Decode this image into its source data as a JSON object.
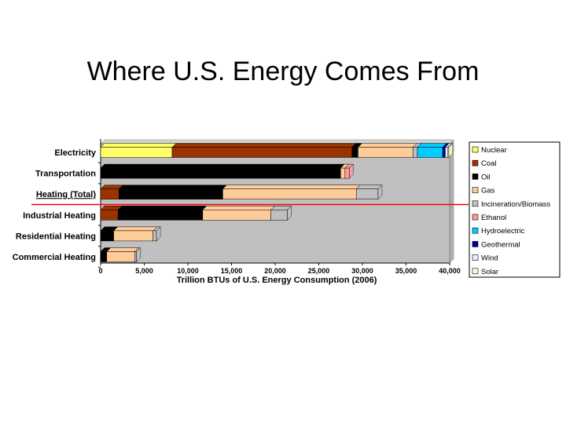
{
  "slide": {
    "title": "Where U.S. Energy Comes From"
  },
  "chart_data": {
    "type": "bar",
    "orientation": "horizontal",
    "stacked": true,
    "title": "",
    "xlabel": "Trillion BTUs of U.S. Energy Consumption (2006)",
    "ylabel": "",
    "xlim": [
      0,
      40000
    ],
    "xticks": [
      0,
      5000,
      10000,
      15000,
      20000,
      25000,
      30000,
      35000,
      40000
    ],
    "xtick_labels": [
      "0",
      "5,000",
      "10,000",
      "15,000",
      "20,000",
      "25,000",
      "30,000",
      "35,000",
      "40,000"
    ],
    "grid": false,
    "legend_position": "right",
    "categories": [
      "Electricity",
      "Transportation",
      "Heating (Total)",
      "Industrial Heating",
      "Residential Heating",
      "Commercial Heating"
    ],
    "underlined_category": "Heating (Total)",
    "series": [
      {
        "name": "Nuclear",
        "color": "#ffff66",
        "values": [
          8200,
          0,
          0,
          0,
          0,
          0
        ]
      },
      {
        "name": "Coal",
        "color": "#993300",
        "values": [
          20600,
          0,
          2100,
          2000,
          0,
          0
        ]
      },
      {
        "name": "Oil",
        "color": "#000000",
        "values": [
          700,
          27500,
          11900,
          9700,
          1500,
          700
        ]
      },
      {
        "name": "Gas",
        "color": "#ffcc99",
        "values": [
          6300,
          500,
          15300,
          7800,
          4500,
          3200
        ]
      },
      {
        "name": "Incineration/Biomass",
        "color": "#c0c0c0",
        "values": [
          500,
          0,
          2500,
          1900,
          400,
          200
        ]
      },
      {
        "name": "Ethanol",
        "color": "#ff9999",
        "values": [
          0,
          500,
          0,
          0,
          0,
          0
        ]
      },
      {
        "name": "Hydroelectric",
        "color": "#00ccff",
        "values": [
          2900,
          0,
          0,
          0,
          0,
          0
        ]
      },
      {
        "name": "Geothermal",
        "color": "#000099",
        "values": [
          300,
          0,
          0,
          0,
          0,
          0
        ]
      },
      {
        "name": "Wind",
        "color": "#e6f0ff",
        "values": [
          300,
          0,
          0,
          0,
          0,
          0
        ]
      },
      {
        "name": "Solar",
        "color": "#ffffcc",
        "values": [
          100,
          0,
          0,
          0,
          0,
          0
        ]
      }
    ],
    "reference_line": {
      "color": "#ff0000",
      "between": [
        "Heating (Total)",
        "Industrial Heating"
      ]
    }
  }
}
